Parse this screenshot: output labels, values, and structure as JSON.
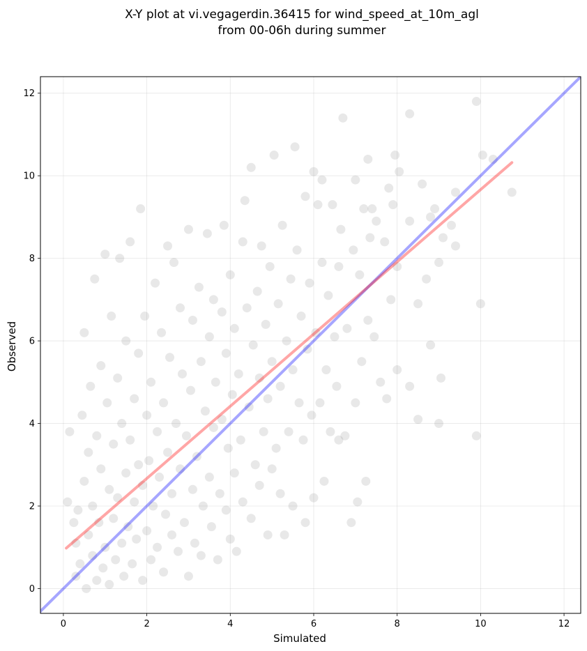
{
  "chart_data": {
    "type": "scatter",
    "title_lines": [
      "X-Y plot at vi.vegagerdin.36415 for wind_speed_at_10m_agl",
      "from 00-06h during summer"
    ],
    "xlabel": "Simulated",
    "ylabel": "Observed",
    "xlim": [
      -0.55,
      12.4
    ],
    "ylim": [
      -0.6,
      12.4
    ],
    "xticks": [
      0,
      2,
      4,
      6,
      8,
      10,
      12
    ],
    "yticks": [
      0,
      2,
      4,
      6,
      8,
      10,
      12
    ],
    "grid": true,
    "point_color": "#808080",
    "point_alpha": 0.18,
    "identity_line": {
      "color": "#0000ff",
      "from": [
        -0.55,
        -0.55
      ],
      "to": [
        12.4,
        12.4
      ]
    },
    "fit_line": {
      "color": "#ff0000",
      "from": [
        0.07,
        0.98
      ],
      "to": [
        10.75,
        10.32
      ]
    },
    "points": [
      [
        0.1,
        2.1
      ],
      [
        0.15,
        3.8
      ],
      [
        0.25,
        1.6
      ],
      [
        0.3,
        0.3
      ],
      [
        0.3,
        1.1
      ],
      [
        0.35,
        1.9
      ],
      [
        0.4,
        0.6
      ],
      [
        0.45,
        4.2
      ],
      [
        0.5,
        2.6
      ],
      [
        0.5,
        6.2
      ],
      [
        0.55,
        0.0
      ],
      [
        0.6,
        3.3
      ],
      [
        0.6,
        1.3
      ],
      [
        0.65,
        4.9
      ],
      [
        0.7,
        0.8
      ],
      [
        0.7,
        2.0
      ],
      [
        0.75,
        7.5
      ],
      [
        0.8,
        3.7
      ],
      [
        0.8,
        0.2
      ],
      [
        0.85,
        1.6
      ],
      [
        0.9,
        5.4
      ],
      [
        0.9,
        2.9
      ],
      [
        0.95,
        0.5
      ],
      [
        1.0,
        1.0
      ],
      [
        1.0,
        8.1
      ],
      [
        1.05,
        4.5
      ],
      [
        1.1,
        2.4
      ],
      [
        1.1,
        0.1
      ],
      [
        1.15,
        6.6
      ],
      [
        1.2,
        1.7
      ],
      [
        1.2,
        3.5
      ],
      [
        1.25,
        0.7
      ],
      [
        1.3,
        5.1
      ],
      [
        1.3,
        2.2
      ],
      [
        1.35,
        8.0
      ],
      [
        1.4,
        1.1
      ],
      [
        1.4,
        4.0
      ],
      [
        1.45,
        0.3
      ],
      [
        1.5,
        2.8
      ],
      [
        1.5,
        6.0
      ],
      [
        1.55,
        1.5
      ],
      [
        1.6,
        3.6
      ],
      [
        1.6,
        8.4
      ],
      [
        1.65,
        0.6
      ],
      [
        1.7,
        2.1
      ],
      [
        1.7,
        4.6
      ],
      [
        1.75,
        1.2
      ],
      [
        1.8,
        5.7
      ],
      [
        1.8,
        3.0
      ],
      [
        1.85,
        9.2
      ],
      [
        1.9,
        0.2
      ],
      [
        1.9,
        2.5
      ],
      [
        1.95,
        6.6
      ],
      [
        2.0,
        1.4
      ],
      [
        2.0,
        4.2
      ],
      [
        2.05,
        3.1
      ],
      [
        2.1,
        0.7
      ],
      [
        2.1,
        5.0
      ],
      [
        2.15,
        2.0
      ],
      [
        2.2,
        7.4
      ],
      [
        2.25,
        1.0
      ],
      [
        2.25,
        3.8
      ],
      [
        2.3,
        2.7
      ],
      [
        2.35,
        6.2
      ],
      [
        2.4,
        0.4
      ],
      [
        2.4,
        4.5
      ],
      [
        2.45,
        1.8
      ],
      [
        2.5,
        8.3
      ],
      [
        2.5,
        3.3
      ],
      [
        2.55,
        5.6
      ],
      [
        2.6,
        1.3
      ],
      [
        2.6,
        2.3
      ],
      [
        2.65,
        7.9
      ],
      [
        2.7,
        4.0
      ],
      [
        2.75,
        0.9
      ],
      [
        2.8,
        6.8
      ],
      [
        2.8,
        2.9
      ],
      [
        2.85,
        5.2
      ],
      [
        2.9,
        1.6
      ],
      [
        2.95,
        3.7
      ],
      [
        3.0,
        8.7
      ],
      [
        3.0,
        0.3
      ],
      [
        3.05,
        4.8
      ],
      [
        3.1,
        2.4
      ],
      [
        3.1,
        6.5
      ],
      [
        3.15,
        1.1
      ],
      [
        3.2,
        3.2
      ],
      [
        3.25,
        7.3
      ],
      [
        3.3,
        5.5
      ],
      [
        3.3,
        0.8
      ],
      [
        3.35,
        2.0
      ],
      [
        3.4,
        4.3
      ],
      [
        3.45,
        8.6
      ],
      [
        3.5,
        6.1
      ],
      [
        3.5,
        2.7
      ],
      [
        3.55,
        1.5
      ],
      [
        3.6,
        3.9
      ],
      [
        3.6,
        7.0
      ],
      [
        3.65,
        5.0
      ],
      [
        3.7,
        0.7
      ],
      [
        3.75,
        2.3
      ],
      [
        3.8,
        6.7
      ],
      [
        3.8,
        4.1
      ],
      [
        3.85,
        8.8
      ],
      [
        3.9,
        1.9
      ],
      [
        3.9,
        5.7
      ],
      [
        3.95,
        3.4
      ],
      [
        4.0,
        7.6
      ],
      [
        4.0,
        1.2
      ],
      [
        4.05,
        4.7
      ],
      [
        4.1,
        2.8
      ],
      [
        4.1,
        6.3
      ],
      [
        4.15,
        0.9
      ],
      [
        4.2,
        5.2
      ],
      [
        4.25,
        3.6
      ],
      [
        4.3,
        8.4
      ],
      [
        4.3,
        2.1
      ],
      [
        4.35,
        9.4
      ],
      [
        4.4,
        6.8
      ],
      [
        4.45,
        4.4
      ],
      [
        4.5,
        1.7
      ],
      [
        4.5,
        10.2
      ],
      [
        4.55,
        5.9
      ],
      [
        4.6,
        3.0
      ],
      [
        4.65,
        7.2
      ],
      [
        4.7,
        2.5
      ],
      [
        4.7,
        5.1
      ],
      [
        4.75,
        8.3
      ],
      [
        4.8,
        3.8
      ],
      [
        4.85,
        6.4
      ],
      [
        4.9,
        1.3
      ],
      [
        4.9,
        4.6
      ],
      [
        4.95,
        7.8
      ],
      [
        5.0,
        2.9
      ],
      [
        5.0,
        5.5
      ],
      [
        5.05,
        10.5
      ],
      [
        5.1,
        3.4
      ],
      [
        5.15,
        6.9
      ],
      [
        5.2,
        2.3
      ],
      [
        5.2,
        4.9
      ],
      [
        5.25,
        8.8
      ],
      [
        5.3,
        1.3
      ],
      [
        5.35,
        6.0
      ],
      [
        5.4,
        3.8
      ],
      [
        5.45,
        7.5
      ],
      [
        5.5,
        2.0
      ],
      [
        5.5,
        5.3
      ],
      [
        5.55,
        10.7
      ],
      [
        5.6,
        8.2
      ],
      [
        5.65,
        4.5
      ],
      [
        5.7,
        6.6
      ],
      [
        5.75,
        3.6
      ],
      [
        5.8,
        1.6
      ],
      [
        5.8,
        9.5
      ],
      [
        5.85,
        5.8
      ],
      [
        5.9,
        7.4
      ],
      [
        5.95,
        4.2
      ],
      [
        6.0,
        10.1
      ],
      [
        6.0,
        2.2
      ],
      [
        6.05,
        6.2
      ],
      [
        6.1,
        9.3
      ],
      [
        6.15,
        4.5
      ],
      [
        6.2,
        7.9
      ],
      [
        6.2,
        9.9
      ],
      [
        6.25,
        2.6
      ],
      [
        6.3,
        5.3
      ],
      [
        6.35,
        7.1
      ],
      [
        6.4,
        3.8
      ],
      [
        6.45,
        9.3
      ],
      [
        6.5,
        6.1
      ],
      [
        6.55,
        4.9
      ],
      [
        6.6,
        7.8
      ],
      [
        6.6,
        3.6
      ],
      [
        6.65,
        8.7
      ],
      [
        6.7,
        11.4
      ],
      [
        6.75,
        3.7
      ],
      [
        6.8,
        6.3
      ],
      [
        6.9,
        1.6
      ],
      [
        6.95,
        8.2
      ],
      [
        7.0,
        4.5
      ],
      [
        7.0,
        9.9
      ],
      [
        7.05,
        2.1
      ],
      [
        7.1,
        7.6
      ],
      [
        7.15,
        5.5
      ],
      [
        7.2,
        9.2
      ],
      [
        7.25,
        2.6
      ],
      [
        7.3,
        10.4
      ],
      [
        7.3,
        6.5
      ],
      [
        7.35,
        8.5
      ],
      [
        7.4,
        9.2
      ],
      [
        7.45,
        6.1
      ],
      [
        7.5,
        8.9
      ],
      [
        7.6,
        5.0
      ],
      [
        7.7,
        8.4
      ],
      [
        7.75,
        4.6
      ],
      [
        7.8,
        9.7
      ],
      [
        7.85,
        7.0
      ],
      [
        7.9,
        9.3
      ],
      [
        7.95,
        10.5
      ],
      [
        8.0,
        7.8
      ],
      [
        8.0,
        5.3
      ],
      [
        8.05,
        10.1
      ],
      [
        8.3,
        8.9
      ],
      [
        8.3,
        4.9
      ],
      [
        8.3,
        11.5
      ],
      [
        8.5,
        6.9
      ],
      [
        8.5,
        4.1
      ],
      [
        8.6,
        9.8
      ],
      [
        8.7,
        7.5
      ],
      [
        8.8,
        5.9
      ],
      [
        8.8,
        9.0
      ],
      [
        8.9,
        9.2
      ],
      [
        9.0,
        7.9
      ],
      [
        9.0,
        4.0
      ],
      [
        9.05,
        5.1
      ],
      [
        9.1,
        8.5
      ],
      [
        9.3,
        8.8
      ],
      [
        9.4,
        9.6
      ],
      [
        9.4,
        8.3
      ],
      [
        9.9,
        11.8
      ],
      [
        9.9,
        3.7
      ],
      [
        10.0,
        6.9
      ],
      [
        10.05,
        10.5
      ],
      [
        10.3,
        10.4
      ],
      [
        10.75,
        9.6
      ]
    ]
  }
}
